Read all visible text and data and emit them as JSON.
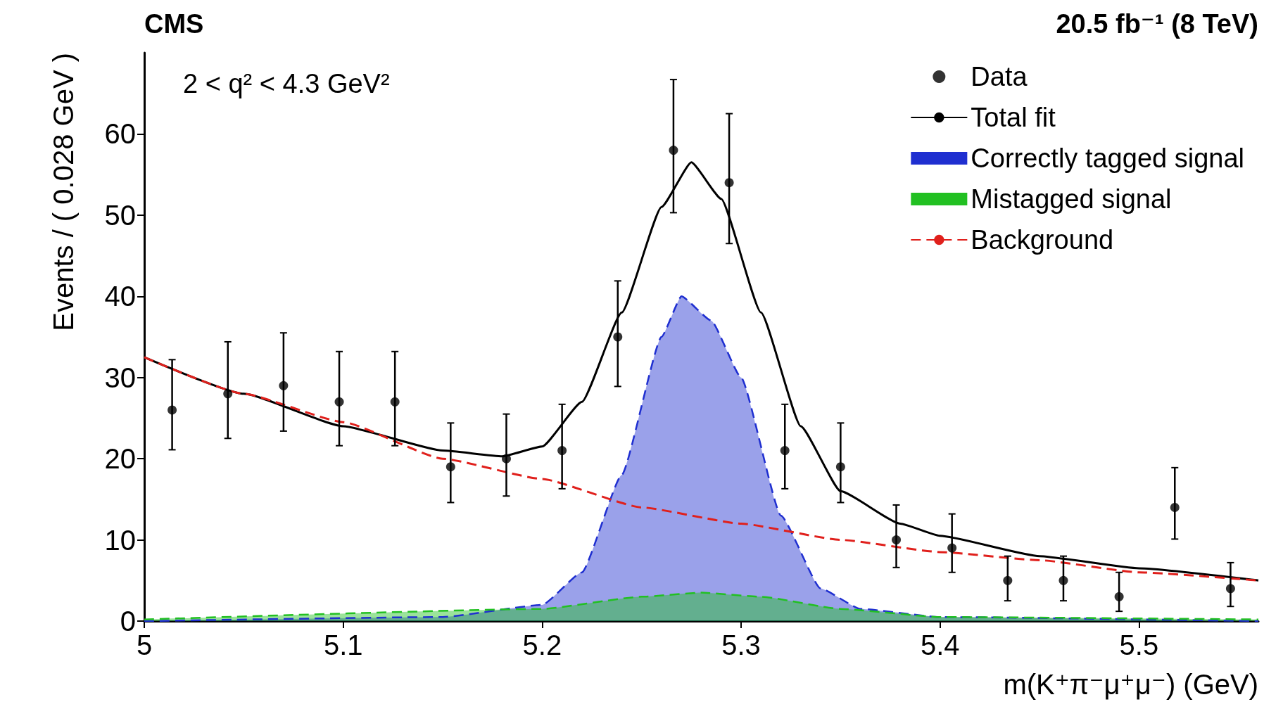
{
  "chart_data": {
    "type": "line",
    "title": "CMS",
    "subtitle": "20.5 fb⁻¹ (8 TeV)",
    "xlabel": "m(K⁺π⁻μ⁺μ⁻) (GeV)",
    "ylabel": "Events / ( 0.028 GeV )",
    "annotations": [
      "2 < q² < 4.3 GeV²"
    ],
    "xlim": [
      5,
      5.56
    ],
    "xticks": [
      5,
      5.1,
      5.2,
      5.3,
      5.4,
      5.5
    ],
    "ylim": [
      0,
      70
    ],
    "yticks": [
      0,
      10,
      20,
      30,
      40,
      50,
      60
    ],
    "grid": false,
    "legend": "top right",
    "series": [
      {
        "name": "Data",
        "type": "scatter",
        "color": "#000000",
        "marker": "circle",
        "x": [
          5.014,
          5.042,
          5.07,
          5.098,
          5.126,
          5.154,
          5.182,
          5.21,
          5.238,
          5.266,
          5.294,
          5.322,
          5.35,
          5.378,
          5.406,
          5.434,
          5.462,
          5.49,
          5.518,
          5.546
        ],
        "values": [
          26,
          28,
          29,
          27,
          27,
          19,
          20,
          21,
          35,
          58,
          54,
          21,
          19,
          10,
          9,
          5,
          5,
          3,
          14,
          4
        ],
        "errors": [
          [
            21.1,
            32.2
          ],
          [
            22.5,
            34.4
          ],
          [
            23.4,
            35.5
          ],
          [
            21.6,
            33.2
          ],
          [
            21.6,
            33.2
          ],
          [
            14.6,
            24.4
          ],
          [
            15.4,
            25.5
          ],
          [
            16.3,
            26.7
          ],
          [
            28.9,
            41.9
          ],
          [
            50.3,
            66.7
          ],
          [
            46.5,
            62.5
          ],
          [
            16.3,
            26.7
          ],
          [
            14.6,
            24.4
          ],
          [
            6.6,
            14.3
          ],
          [
            6,
            13.2
          ],
          [
            2.5,
            8
          ],
          [
            2.5,
            8
          ],
          [
            1.2,
            6
          ],
          [
            10.1,
            18.9
          ],
          [
            1.8,
            7.2
          ]
        ]
      },
      {
        "name": "Total fit",
        "color": "#000000",
        "line_style": "solid",
        "marker": "none",
        "x": [
          5,
          5.05,
          5.1,
          5.15,
          5.18,
          5.2,
          5.22,
          5.24,
          5.26,
          5.275,
          5.29,
          5.31,
          5.33,
          5.35,
          5.38,
          5.4,
          5.45,
          5.5,
          5.56
        ],
        "values": [
          32.5,
          28,
          24,
          21,
          20.3,
          21.5,
          27,
          38,
          51,
          56.5,
          52,
          38,
          24,
          16,
          12,
          10.5,
          8,
          6.5,
          5
        ]
      },
      {
        "name": "Correctly tagged signal",
        "type": "area",
        "color": "#1f2fd0",
        "line_style": "dashed",
        "marker": "none",
        "x": [
          5,
          5.15,
          5.2,
          5.22,
          5.24,
          5.26,
          5.27,
          5.285,
          5.3,
          5.32,
          5.34,
          5.36,
          5.4,
          5.56
        ],
        "values": [
          0,
          0.5,
          2,
          6,
          18,
          35,
          40,
          37,
          30,
          13,
          4,
          1.5,
          0.5,
          0
        ]
      },
      {
        "name": "Mistagged signal",
        "type": "area",
        "color": "#22c022",
        "line_style": "dashed",
        "marker": "none",
        "x": [
          5,
          5.2,
          5.25,
          5.28,
          5.31,
          5.35,
          5.4,
          5.56
        ],
        "values": [
          0.2,
          1.5,
          3,
          3.5,
          3,
          1.5,
          0.5,
          0.2
        ]
      },
      {
        "name": "Background",
        "color": "#e0201c",
        "line_style": "dashed",
        "marker": "none",
        "x": [
          5,
          5.05,
          5.1,
          5.15,
          5.2,
          5.25,
          5.3,
          5.35,
          5.4,
          5.45,
          5.5,
          5.56
        ],
        "values": [
          32.5,
          28,
          24.5,
          20,
          17.5,
          14,
          12,
          10,
          8.5,
          7.5,
          6,
          5
        ]
      }
    ]
  }
}
